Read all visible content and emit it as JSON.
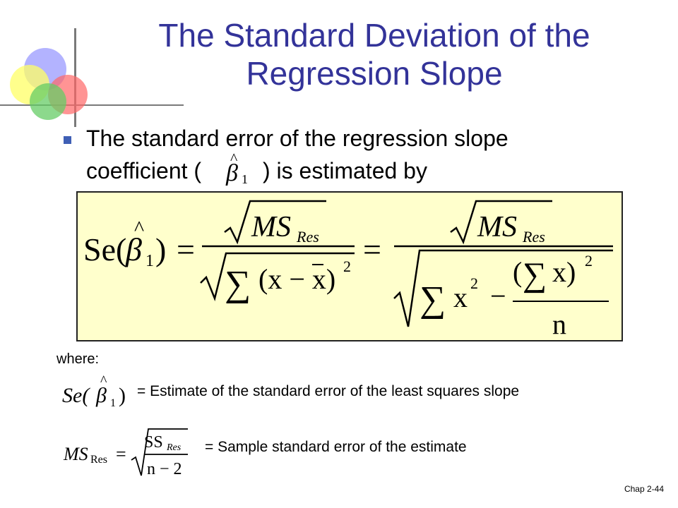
{
  "title": {
    "line1": "The Standard Deviation of the",
    "line2": "Regression Slope"
  },
  "bullet": {
    "line1": "The standard error of the regression slope",
    "line2_before": "coefficient (",
    "line2_after": ") is estimated by"
  },
  "formula": {
    "lhs": "Se(",
    "lhs_close": ")",
    "beta": "β",
    "hat": "^",
    "sub_one": "1",
    "equals": "=",
    "ms": "MS",
    "res": "Res",
    "sigma": "∑",
    "paren_x_minus_xbar": "(x − x)",
    "square": "2",
    "x": "x",
    "minus": "−",
    "sum_x_open": "(",
    "sum_x_close": "x)",
    "n": "n"
  },
  "where": {
    "label": "where:",
    "se_def": "= Estimate of the standard error of the least squares slope",
    "ms_def": "= Sample standard error of the estimate",
    "ss": "SS",
    "res_small": "Res",
    "n_minus_2": "n − 2"
  },
  "footer": "Chap 2-44",
  "colors": {
    "title": "#333399",
    "bullet": "#3f5fb5",
    "formula_bg": "#ffffcc"
  }
}
